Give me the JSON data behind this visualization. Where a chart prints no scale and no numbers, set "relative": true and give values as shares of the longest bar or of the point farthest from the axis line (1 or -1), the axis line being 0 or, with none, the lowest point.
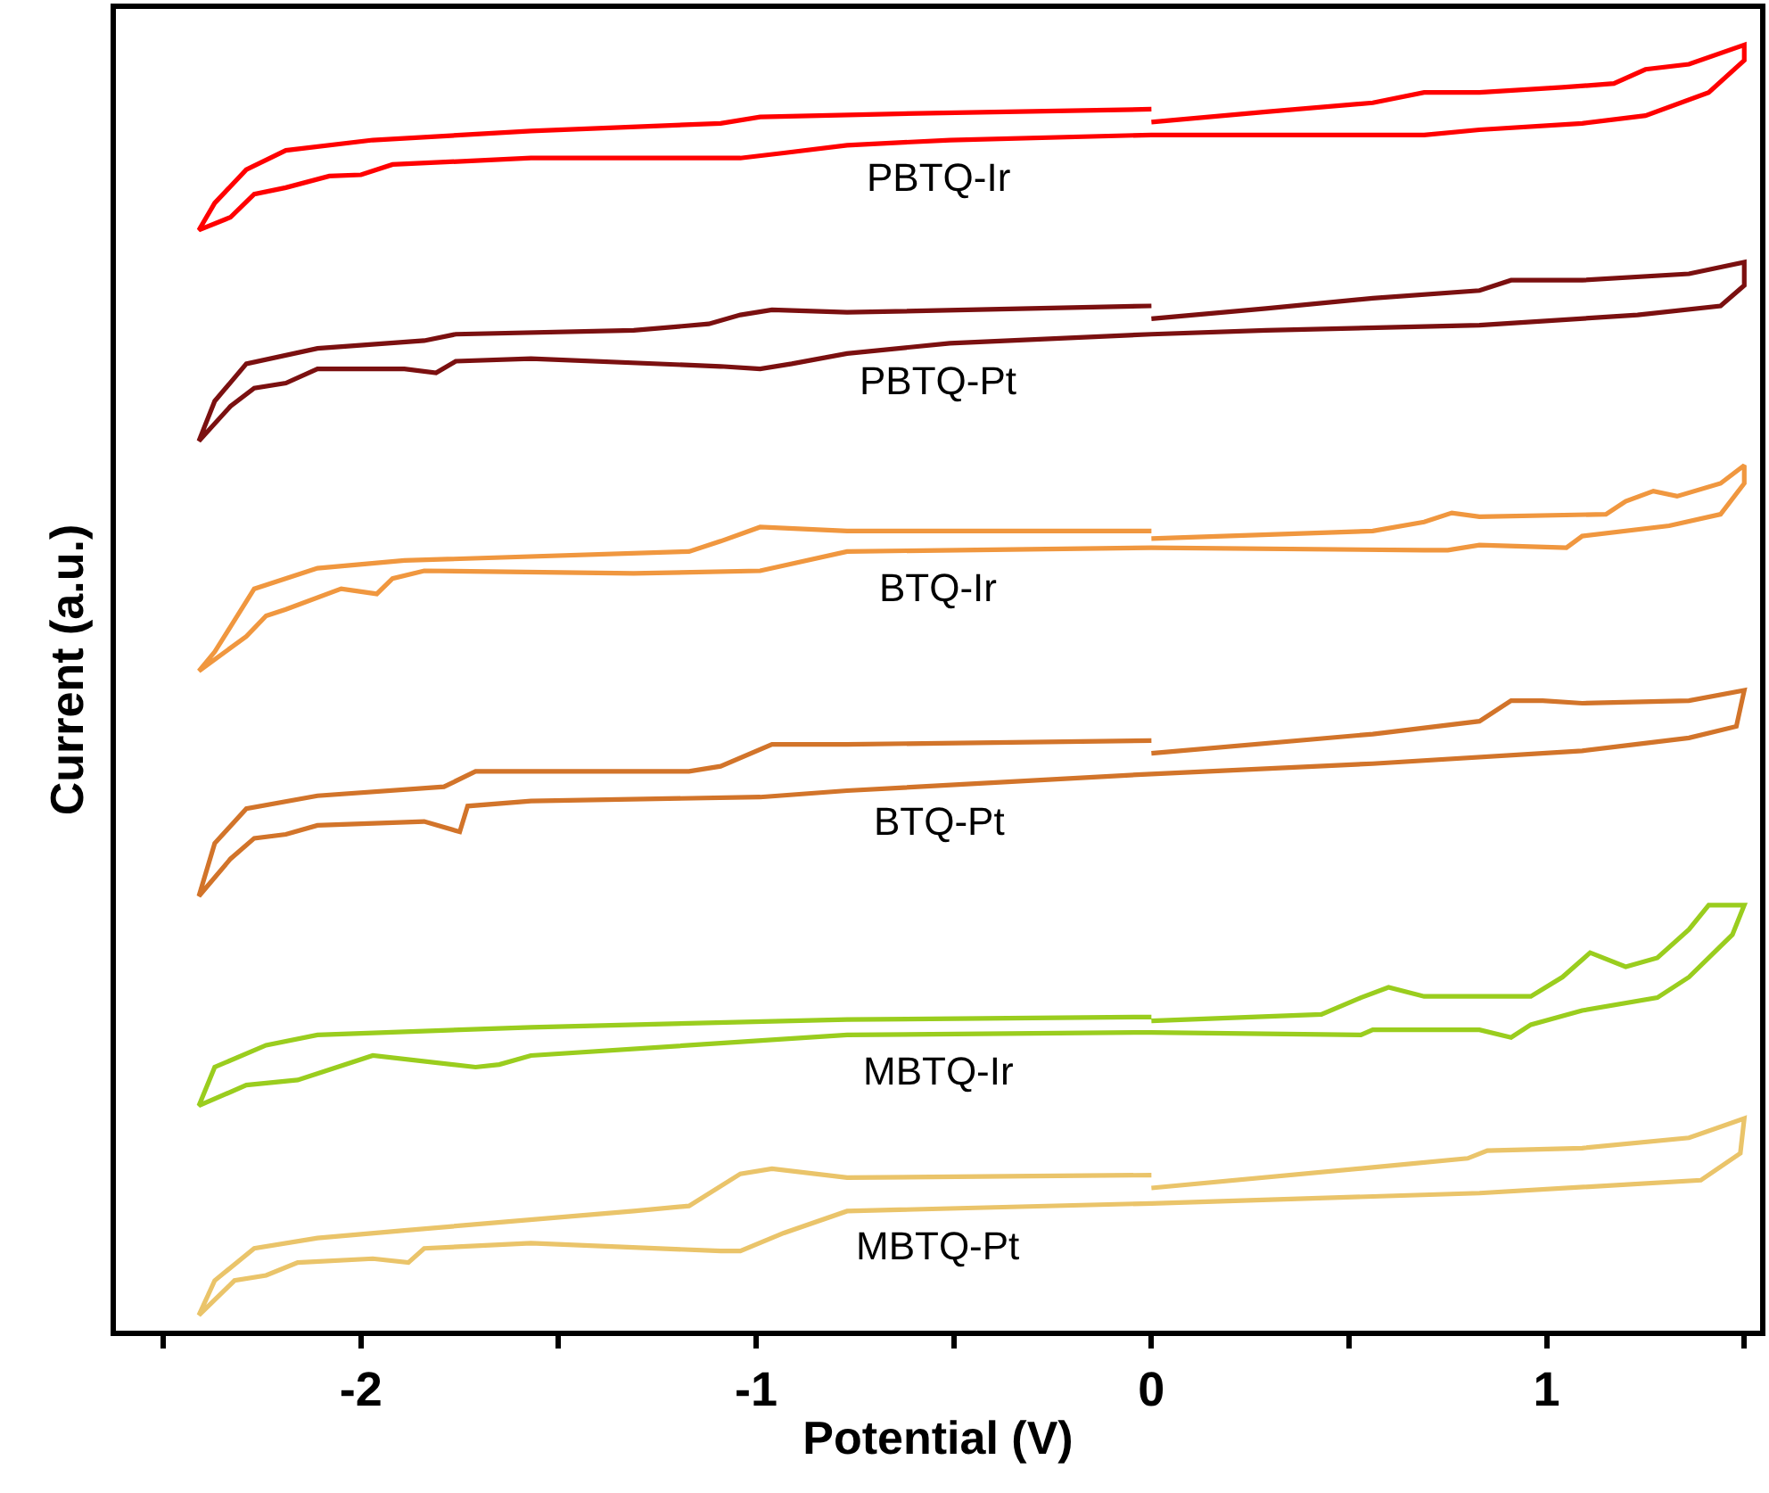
{
  "chart_data": {
    "type": "line",
    "relative": true,
    "xlabel": "Potential (V)",
    "ylabel": "Current (a.u.)",
    "xlim": [
      -2.62,
      1.54
    ],
    "xticks": [
      {
        "value": -2.5,
        "label": null
      },
      -2,
      {
        "value": -1.5,
        "label": null
      },
      -1,
      {
        "value": -0.5,
        "label": null
      },
      0,
      {
        "value": 0.5,
        "label": null
      },
      1,
      {
        "value": 1.5,
        "label": null
      }
    ],
    "legend": false,
    "marker": "none",
    "line_style": "solid",
    "tick_labels": "x",
    "series": [
      {
        "name": "PBTQ-Ir",
        "color": "#ff0000",
        "x": [
          0,
          0.29,
          0.56,
          0.69,
          0.83,
          1.04,
          1.17,
          1.25,
          1.36,
          1.5,
          1.5,
          1.41,
          1.25,
          1.09,
          0.83,
          0.69,
          0.29,
          0,
          -0.51,
          -0.77,
          -0.93,
          -1.04,
          -1.57,
          -1.92,
          -2.0,
          -2.08,
          -2.19,
          -2.27,
          -2.33,
          -2.41,
          -2.37,
          -2.29,
          -2.19,
          -1.97,
          -1.57,
          -1.09,
          -0.99,
          -0.56,
          0
        ],
        "values": [
          0.94,
          0.948,
          0.955,
          0.963,
          0.963,
          0.967,
          0.97,
          0.981,
          0.985,
          1.0,
          0.988,
          0.963,
          0.945,
          0.939,
          0.934,
          0.93,
          0.93,
          0.93,
          0.926,
          0.922,
          0.916,
          0.912,
          0.912,
          0.907,
          0.899,
          0.898,
          0.889,
          0.884,
          0.866,
          0.856,
          0.877,
          0.903,
          0.918,
          0.926,
          0.933,
          0.939,
          0.944,
          0.947,
          0.95
        ]
      },
      {
        "name": "PBTQ-Pt",
        "color": "#7b1010",
        "x": [
          0,
          0.29,
          0.56,
          0.83,
          0.91,
          1.09,
          1.36,
          1.5,
          1.5,
          1.44,
          1.23,
          0.83,
          0.29,
          0,
          -0.51,
          -0.77,
          -0.91,
          -0.99,
          -1.09,
          -1.57,
          -1.76,
          -1.81,
          -1.89,
          -2.11,
          -2.19,
          -2.27,
          -2.33,
          -2.41,
          -2.37,
          -2.29,
          -2.11,
          -1.84,
          -1.76,
          -1.31,
          -1.12,
          -1.04,
          -0.96,
          -0.77,
          0
        ],
        "values": [
          0.787,
          0.795,
          0.803,
          0.809,
          0.817,
          0.817,
          0.822,
          0.831,
          0.813,
          0.797,
          0.79,
          0.782,
          0.778,
          0.775,
          0.768,
          0.76,
          0.752,
          0.748,
          0.75,
          0.756,
          0.754,
          0.745,
          0.748,
          0.748,
          0.737,
          0.733,
          0.719,
          0.692,
          0.723,
          0.752,
          0.764,
          0.77,
          0.775,
          0.778,
          0.783,
          0.79,
          0.794,
          0.792,
          0.797
        ]
      },
      {
        "name": "BTQ-Ir",
        "color": "#f0973f",
        "x": [
          0,
          0.56,
          0.69,
          0.76,
          0.83,
          1.15,
          1.2,
          1.27,
          1.33,
          1.44,
          1.5,
          1.5,
          1.44,
          1.31,
          1.09,
          1.05,
          0.83,
          0.75,
          0.69,
          0,
          -0.77,
          -0.99,
          -1.31,
          -1.84,
          -1.92,
          -1.96,
          -2.05,
          -2.19,
          -2.24,
          -2.29,
          -2.41,
          -2.37,
          -2.27,
          -2.11,
          -1.89,
          -1.17,
          -1.09,
          -0.99,
          -0.77,
          -0.51,
          0
        ],
        "values": [
          0.616,
          0.622,
          0.629,
          0.636,
          0.633,
          0.635,
          0.645,
          0.653,
          0.649,
          0.659,
          0.673,
          0.659,
          0.635,
          0.626,
          0.618,
          0.609,
          0.611,
          0.607,
          0.607,
          0.609,
          0.606,
          0.591,
          0.589,
          0.591,
          0.585,
          0.573,
          0.577,
          0.561,
          0.556,
          0.54,
          0.513,
          0.528,
          0.577,
          0.593,
          0.599,
          0.606,
          0.614,
          0.625,
          0.622,
          0.622,
          0.622
        ]
      },
      {
        "name": "BTQ-Pt",
        "color": "#d2742a",
        "x": [
          0,
          0.56,
          0.83,
          0.91,
          0.99,
          1.09,
          1.36,
          1.5,
          1.48,
          1.36,
          1.09,
          0.56,
          0,
          -0.77,
          -0.99,
          -1.57,
          -1.73,
          -1.75,
          -1.84,
          -2.11,
          -2.19,
          -2.27,
          -2.33,
          -2.41,
          -2.37,
          -2.29,
          -2.11,
          -1.79,
          -1.71,
          -1.17,
          -1.09,
          -0.96,
          -0.77,
          0
        ],
        "values": [
          0.449,
          0.464,
          0.474,
          0.49,
          0.49,
          0.488,
          0.49,
          0.498,
          0.47,
          0.461,
          0.451,
          0.441,
          0.433,
          0.42,
          0.415,
          0.412,
          0.408,
          0.388,
          0.396,
          0.393,
          0.386,
          0.383,
          0.367,
          0.338,
          0.379,
          0.406,
          0.416,
          0.423,
          0.435,
          0.435,
          0.439,
          0.456,
          0.456,
          0.459
        ]
      },
      {
        "name": "MBTQ-Ir",
        "color": "#9acd1e",
        "x": [
          0,
          0.43,
          0.53,
          0.6,
          0.69,
          0.96,
          1.04,
          1.11,
          1.2,
          1.28,
          1.36,
          1.41,
          1.5,
          1.47,
          1.36,
          1.28,
          1.09,
          0.96,
          0.91,
          0.83,
          0.56,
          0.53,
          0,
          -0.77,
          -1.57,
          -1.65,
          -1.71,
          -1.97,
          -2.16,
          -2.29,
          -2.41,
          -2.37,
          -2.24,
          -2.11,
          -1.57,
          -0.77,
          0
        ],
        "values": [
          0.241,
          0.246,
          0.259,
          0.267,
          0.26,
          0.26,
          0.275,
          0.294,
          0.283,
          0.29,
          0.312,
          0.331,
          0.331,
          0.308,
          0.275,
          0.259,
          0.249,
          0.238,
          0.228,
          0.234,
          0.234,
          0.23,
          0.232,
          0.23,
          0.214,
          0.207,
          0.205,
          0.214,
          0.195,
          0.191,
          0.175,
          0.205,
          0.222,
          0.23,
          0.236,
          0.242,
          0.244
        ]
      },
      {
        "name": "MBTQ-Pt",
        "color": "#eac46a",
        "x": [
          0,
          0.56,
          0.8,
          0.85,
          1.09,
          1.36,
          1.5,
          1.49,
          1.39,
          0.83,
          0,
          -0.77,
          -0.93,
          -1.04,
          -1.09,
          -1.57,
          -1.84,
          -1.88,
          -1.97,
          -2.16,
          -2.24,
          -2.32,
          -2.41,
          -2.37,
          -2.27,
          -2.11,
          -1.89,
          -1.31,
          -1.17,
          -1.04,
          -0.96,
          -0.77,
          0
        ],
        "values": [
          0.111,
          0.127,
          0.134,
          0.14,
          0.142,
          0.15,
          0.165,
          0.138,
          0.117,
          0.107,
          0.099,
          0.093,
          0.076,
          0.062,
          0.062,
          0.068,
          0.064,
          0.053,
          0.056,
          0.053,
          0.043,
          0.039,
          0.012,
          0.039,
          0.064,
          0.072,
          0.078,
          0.093,
          0.097,
          0.122,
          0.126,
          0.119,
          0.121
        ]
      }
    ]
  }
}
